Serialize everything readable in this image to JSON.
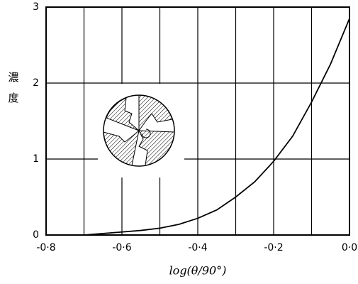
{
  "chart_data": {
    "type": "line",
    "ylabel": "濃度",
    "xlabel": "log(θ/90°)",
    "x": [
      -0.7,
      -0.65,
      -0.6,
      -0.55,
      -0.5,
      -0.45,
      -0.4,
      -0.35,
      -0.3,
      -0.25,
      -0.2,
      -0.15,
      -0.1,
      -0.05,
      0.0
    ],
    "values": [
      0,
      0.02,
      0.04,
      0.06,
      0.09,
      0.14,
      0.22,
      0.33,
      0.5,
      0.7,
      0.97,
      1.3,
      1.75,
      2.25,
      2.85
    ],
    "color": "#000000",
    "xlim": [
      -0.8,
      0.0
    ],
    "ylim": [
      0,
      3
    ],
    "xticks": [
      {
        "value": -0.8,
        "label": "-0·8"
      },
      {
        "value": -0.6,
        "label": "-0·6"
      },
      {
        "value": -0.4,
        "label": "-0·4"
      },
      {
        "value": -0.2,
        "label": "-0·2"
      },
      {
        "value": 0,
        "label": "0·0"
      }
    ],
    "xminor": [
      -0.7,
      -0.5,
      -0.3,
      -0.1
    ],
    "yticks": [
      0,
      1,
      2,
      3
    ],
    "grid": true
  }
}
